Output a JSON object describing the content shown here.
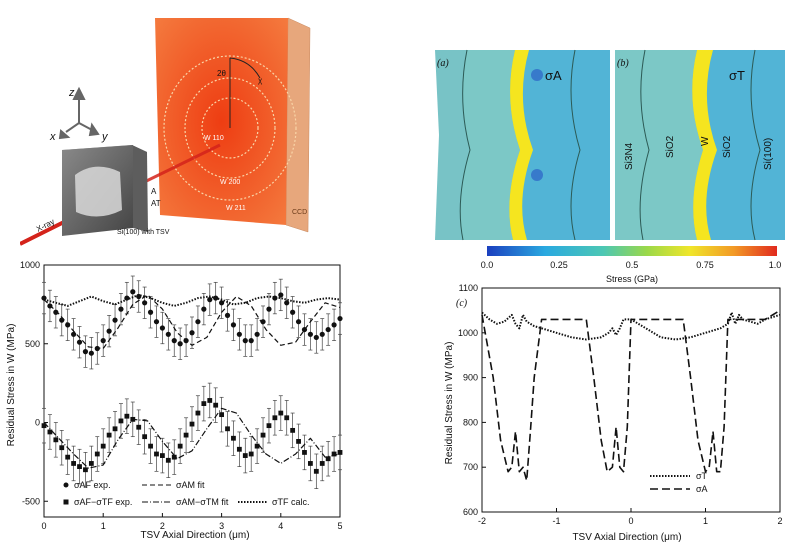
{
  "colors": {
    "ccd_face": "#f0561e",
    "ccd_edge": "#e7a77c",
    "beam": "#d4231b",
    "tungsten": "#f5e51f",
    "oxide": "#7cc8c6",
    "silicon": "#52b4d6"
  },
  "schematic": {
    "axis_z": "z",
    "axis_x": "x",
    "axis_y": "y",
    "two_theta": "2θ",
    "chi": "χ",
    "ring_1": "W 110",
    "ring_2": "W 200",
    "ring_3": "W 211",
    "detector": "CCD",
    "beam_label": "X-ray",
    "point_a": "A",
    "point_at": "AT",
    "sample": "Si(100) with TSV"
  },
  "fem": {
    "panel_a": "(a)",
    "panel_b": "(b)",
    "sigma_a": "σA",
    "sigma_t": "σT",
    "layers": [
      "Si3N4",
      "SiO2",
      "W",
      "SiO2",
      "Si(100)"
    ],
    "colorbar_ticks": [
      "0.0",
      "0.25",
      "0.5",
      "0.75",
      "1.0"
    ],
    "colorbar_label": "Stress (GPa)"
  },
  "chart_data": [
    {
      "type": "scatter",
      "ylabel": "Residual Stress in W (MPa)",
      "xlabel": "TSV Axial Direction (μm)",
      "xlim": [
        0,
        5
      ],
      "ylim": [
        -600,
        1000
      ],
      "xticks": [
        "0",
        "1",
        "2",
        "3",
        "4",
        "5"
      ],
      "yticks": [
        "-500",
        "0",
        "500",
        "1000"
      ],
      "legend": [
        "σAF exp.",
        "σAF−σTF exp.",
        "σAM fit",
        "σAM−σTM fit",
        "σTF calc."
      ],
      "series": [
        {
          "name": "σAF exp.",
          "x": [
            0.0,
            0.1,
            0.2,
            0.3,
            0.4,
            0.5,
            0.6,
            0.7,
            0.8,
            0.9,
            1.0,
            1.1,
            1.2,
            1.3,
            1.4,
            1.5,
            1.6,
            1.7,
            1.8,
            1.9,
            2.0,
            2.1,
            2.2,
            2.3,
            2.4,
            2.5,
            2.6,
            2.7,
            2.8,
            2.9,
            3.0,
            3.1,
            3.2,
            3.3,
            3.4,
            3.5,
            3.6,
            3.7,
            3.8,
            3.9,
            4.0,
            4.1,
            4.2,
            4.3,
            4.4,
            4.5,
            4.6,
            4.7,
            4.8,
            4.9,
            5.0
          ],
          "y": [
            790,
            740,
            700,
            650,
            620,
            560,
            510,
            450,
            440,
            470,
            520,
            580,
            650,
            720,
            790,
            830,
            800,
            760,
            700,
            640,
            600,
            560,
            520,
            500,
            520,
            570,
            640,
            720,
            780,
            790,
            760,
            680,
            620,
            560,
            520,
            520,
            560,
            640,
            720,
            790,
            810,
            760,
            700,
            640,
            590,
            560,
            540,
            560,
            590,
            620,
            660
          ],
          "err": 100
        },
        {
          "name": "σAF−σTF exp.",
          "x": [
            0.0,
            0.1,
            0.2,
            0.3,
            0.4,
            0.5,
            0.6,
            0.7,
            0.8,
            0.9,
            1.0,
            1.1,
            1.2,
            1.3,
            1.4,
            1.5,
            1.6,
            1.7,
            1.8,
            1.9,
            2.0,
            2.1,
            2.2,
            2.3,
            2.4,
            2.5,
            2.6,
            2.7,
            2.8,
            2.9,
            3.0,
            3.1,
            3.2,
            3.3,
            3.4,
            3.5,
            3.6,
            3.7,
            3.8,
            3.9,
            4.0,
            4.1,
            4.2,
            4.3,
            4.4,
            4.5,
            4.6,
            4.7,
            4.8,
            4.9,
            5.0
          ],
          "y": [
            -20,
            -60,
            -110,
            -160,
            -220,
            -260,
            -280,
            -300,
            -260,
            -200,
            -150,
            -80,
            -40,
            10,
            40,
            20,
            -30,
            -90,
            -150,
            -200,
            -210,
            -240,
            -220,
            -150,
            -80,
            -10,
            60,
            120,
            140,
            110,
            50,
            -40,
            -100,
            -170,
            -210,
            -200,
            -150,
            -80,
            -20,
            30,
            60,
            30,
            -50,
            -120,
            -190,
            -260,
            -310,
            -260,
            -230,
            -200,
            -190
          ],
          "err": 110
        },
        {
          "name": "σAM fit",
          "x": [
            0,
            0.25,
            0.5,
            0.75,
            1.0,
            1.25,
            1.5,
            1.75,
            2.0,
            2.25,
            2.5,
            2.75,
            3.0,
            3.25,
            3.5,
            3.75,
            4.0,
            4.25,
            4.5,
            4.75,
            5.0
          ],
          "y": [
            780,
            690,
            580,
            480,
            470,
            600,
            750,
            810,
            720,
            570,
            490,
            540,
            700,
            800,
            740,
            590,
            490,
            510,
            640,
            760,
            730
          ]
        },
        {
          "name": "σAM−σTM fit",
          "x": [
            0,
            0.25,
            0.5,
            0.75,
            1.0,
            1.25,
            1.5,
            1.75,
            2.0,
            2.25,
            2.5,
            2.75,
            3.0,
            3.25,
            3.5,
            3.75,
            4.0,
            4.25,
            4.5,
            4.75,
            5.0
          ],
          "y": [
            0,
            -100,
            -200,
            -290,
            -270,
            -110,
            20,
            10,
            -120,
            -230,
            -180,
            -40,
            90,
            60,
            -80,
            -200,
            -260,
            -200,
            -100,
            -220,
            -200
          ]
        },
        {
          "name": "σTF calc.",
          "x": [
            0,
            0.2,
            0.4,
            0.6,
            0.8,
            1.0,
            1.2,
            1.4,
            1.6,
            1.8,
            2.0,
            2.2,
            2.4,
            2.6,
            2.8,
            3.0,
            3.2,
            3.4,
            3.6,
            3.8,
            4.0,
            4.2,
            4.4,
            4.6,
            4.8,
            5.0
          ],
          "y": [
            780,
            760,
            740,
            770,
            800,
            770,
            750,
            780,
            810,
            790,
            760,
            740,
            760,
            790,
            800,
            780,
            750,
            760,
            790,
            800,
            790,
            770,
            760,
            780,
            790,
            780
          ]
        }
      ]
    },
    {
      "type": "line",
      "panel": "(c)",
      "ylabel": "Residual Stress in W (MPa)",
      "xlabel": "TSV Axial Direction (μm)",
      "xlim": [
        -2,
        2
      ],
      "ylim": [
        600,
        1100
      ],
      "xticks": [
        "-2",
        "-1",
        "0",
        "1",
        "2"
      ],
      "yticks": [
        "600",
        "700",
        "800",
        "900",
        "1000",
        "1100"
      ],
      "legend": [
        "σT",
        "σA"
      ],
      "series": [
        {
          "name": "σT",
          "x": [
            -2.0,
            -1.9,
            -1.8,
            -1.7,
            -1.6,
            -1.55,
            -1.5,
            -1.45,
            -1.4,
            -1.3,
            -1.2,
            -1.0,
            -0.8,
            -0.6,
            -0.4,
            -0.3,
            -0.25,
            -0.2,
            -0.15,
            -0.1,
            0.0,
            0.2,
            0.4,
            0.6,
            0.8,
            1.0,
            1.2,
            1.3,
            1.35,
            1.4,
            1.45,
            1.5,
            1.6,
            1.7,
            1.8,
            1.9,
            2.0
          ],
          "y": [
            1045,
            1030,
            1020,
            1025,
            1040,
            1020,
            1010,
            1040,
            1025,
            1015,
            1010,
            1000,
            990,
            985,
            990,
            1000,
            1010,
            995,
            1010,
            1030,
            1030,
            1010,
            990,
            985,
            990,
            1000,
            1010,
            1020,
            1045,
            1020,
            1040,
            1030,
            1025,
            1020,
            1030,
            1035,
            1040
          ]
        },
        {
          "name": "σA",
          "x": [
            -2.0,
            -1.85,
            -1.75,
            -1.65,
            -1.6,
            -1.55,
            -1.5,
            -1.45,
            -1.4,
            -1.35,
            -1.3,
            -1.2,
            -1.0,
            -0.6,
            -0.5,
            -0.4,
            -0.32,
            -0.25,
            -0.2,
            -0.15,
            -0.1,
            -0.05,
            0.0,
            0.1,
            0.3,
            0.5,
            0.7,
            0.8,
            0.9,
            1.0,
            1.05,
            1.1,
            1.15,
            1.2,
            1.25,
            1.3,
            1.4,
            1.6,
            1.8,
            2.0
          ],
          "y": [
            1040,
            900,
            760,
            690,
            700,
            780,
            690,
            700,
            670,
            780,
            900,
            1030,
            1030,
            1030,
            900,
            760,
            690,
            700,
            790,
            700,
            690,
            790,
            1030,
            1030,
            1030,
            1030,
            1030,
            900,
            760,
            690,
            700,
            780,
            690,
            690,
            790,
            1030,
            1030,
            1030,
            1030,
            1050
          ]
        }
      ]
    }
  ]
}
